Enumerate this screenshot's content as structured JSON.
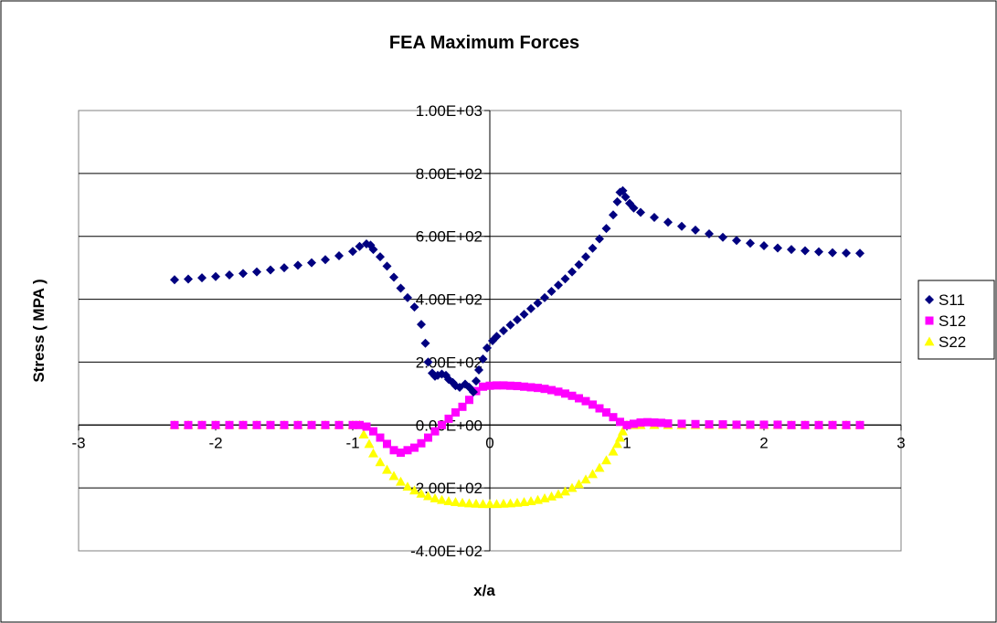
{
  "chart_data": {
    "type": "scatter",
    "title": "FEA Maximum Forces",
    "xlabel": "x/a",
    "ylabel": "Stress ( MPA )",
    "xlim": [
      -3,
      3
    ],
    "ylim": [
      -400,
      1000
    ],
    "x_ticks": [
      -3,
      -2,
      -1,
      0,
      1,
      2,
      3
    ],
    "x_tick_labels": [
      "-3",
      "-2",
      "-1",
      "0",
      "1",
      "2",
      "3"
    ],
    "y_ticks": [
      -400,
      -200,
      0,
      200,
      400,
      600,
      800,
      1000
    ],
    "y_tick_labels": [
      "-4.00E+02",
      "-2.00E+02",
      "0.00E+00",
      "2.00E+02",
      "4.00E+02",
      "6.00E+02",
      "8.00E+02",
      "1.00E+03"
    ],
    "grid": "horizontal",
    "legend_position": "right",
    "series": [
      {
        "name": "S11",
        "color": "#000080",
        "marker": "diamond",
        "points": [
          [
            -2.3,
            462
          ],
          [
            -2.2,
            464
          ],
          [
            -2.1,
            468
          ],
          [
            -2.0,
            472
          ],
          [
            -1.9,
            477
          ],
          [
            -1.8,
            482
          ],
          [
            -1.7,
            487
          ],
          [
            -1.6,
            493
          ],
          [
            -1.5,
            500
          ],
          [
            -1.4,
            508
          ],
          [
            -1.3,
            516
          ],
          [
            -1.2,
            526
          ],
          [
            -1.1,
            538
          ],
          [
            -1.0,
            552
          ],
          [
            -0.95,
            568
          ],
          [
            -0.9,
            576
          ],
          [
            -0.87,
            572
          ],
          [
            -0.85,
            558
          ],
          [
            -0.8,
            535
          ],
          [
            -0.75,
            505
          ],
          [
            -0.7,
            470
          ],
          [
            -0.65,
            435
          ],
          [
            -0.6,
            405
          ],
          [
            -0.55,
            375
          ],
          [
            -0.5,
            320
          ],
          [
            -0.47,
            260
          ],
          [
            -0.45,
            200
          ],
          [
            -0.42,
            165
          ],
          [
            -0.4,
            155
          ],
          [
            -0.38,
            158
          ],
          [
            -0.35,
            162
          ],
          [
            -0.32,
            158
          ],
          [
            -0.3,
            145
          ],
          [
            -0.27,
            135
          ],
          [
            -0.25,
            125
          ],
          [
            -0.22,
            120
          ],
          [
            -0.18,
            130
          ],
          [
            -0.15,
            120
          ],
          [
            -0.12,
            105
          ],
          [
            -0.1,
            140
          ],
          [
            -0.08,
            175
          ],
          [
            -0.05,
            210
          ],
          [
            -0.02,
            245
          ],
          [
            0.02,
            268
          ],
          [
            0.05,
            282
          ],
          [
            0.1,
            300
          ],
          [
            0.15,
            318
          ],
          [
            0.2,
            335
          ],
          [
            0.25,
            352
          ],
          [
            0.3,
            370
          ],
          [
            0.35,
            388
          ],
          [
            0.4,
            405
          ],
          [
            0.45,
            425
          ],
          [
            0.5,
            445
          ],
          [
            0.55,
            465
          ],
          [
            0.6,
            487
          ],
          [
            0.65,
            510
          ],
          [
            0.7,
            535
          ],
          [
            0.75,
            562
          ],
          [
            0.8,
            592
          ],
          [
            0.85,
            625
          ],
          [
            0.9,
            668
          ],
          [
            0.93,
            710
          ],
          [
            0.95,
            740
          ],
          [
            0.97,
            745
          ],
          [
            0.99,
            725
          ],
          [
            1.02,
            705
          ],
          [
            1.05,
            690
          ],
          [
            1.1,
            676
          ],
          [
            1.2,
            660
          ],
          [
            1.3,
            645
          ],
          [
            1.4,
            632
          ],
          [
            1.5,
            620
          ],
          [
            1.6,
            608
          ],
          [
            1.7,
            597
          ],
          [
            1.8,
            587
          ],
          [
            1.9,
            578
          ],
          [
            2.0,
            570
          ],
          [
            2.1,
            563
          ],
          [
            2.2,
            558
          ],
          [
            2.3,
            554
          ],
          [
            2.4,
            551
          ],
          [
            2.5,
            548
          ],
          [
            2.6,
            547
          ],
          [
            2.7,
            546
          ]
        ]
      },
      {
        "name": "S12",
        "color": "#FF00FF",
        "marker": "square",
        "points": [
          [
            -2.3,
            0
          ],
          [
            -2.2,
            0
          ],
          [
            -2.1,
            0
          ],
          [
            -2.0,
            0
          ],
          [
            -1.9,
            0
          ],
          [
            -1.8,
            0
          ],
          [
            -1.7,
            0
          ],
          [
            -1.6,
            0
          ],
          [
            -1.5,
            0
          ],
          [
            -1.4,
            0
          ],
          [
            -1.3,
            0
          ],
          [
            -1.2,
            0
          ],
          [
            -1.1,
            0
          ],
          [
            -1.0,
            0
          ],
          [
            -0.95,
            0
          ],
          [
            -0.9,
            -5
          ],
          [
            -0.85,
            -20
          ],
          [
            -0.8,
            -40
          ],
          [
            -0.75,
            -60
          ],
          [
            -0.7,
            -80
          ],
          [
            -0.65,
            -88
          ],
          [
            -0.6,
            -80
          ],
          [
            -0.55,
            -72
          ],
          [
            -0.5,
            -58
          ],
          [
            -0.45,
            -40
          ],
          [
            -0.4,
            -20
          ],
          [
            -0.35,
            0
          ],
          [
            -0.3,
            20
          ],
          [
            -0.25,
            40
          ],
          [
            -0.2,
            58
          ],
          [
            -0.15,
            80
          ],
          [
            -0.1,
            108
          ],
          [
            -0.05,
            122
          ],
          [
            0.0,
            125
          ],
          [
            0.05,
            126
          ],
          [
            0.1,
            126
          ],
          [
            0.15,
            125
          ],
          [
            0.2,
            124
          ],
          [
            0.25,
            122
          ],
          [
            0.3,
            120
          ],
          [
            0.35,
            118
          ],
          [
            0.4,
            115
          ],
          [
            0.45,
            111
          ],
          [
            0.5,
            106
          ],
          [
            0.55,
            100
          ],
          [
            0.6,
            93
          ],
          [
            0.65,
            85
          ],
          [
            0.7,
            76
          ],
          [
            0.75,
            65
          ],
          [
            0.8,
            53
          ],
          [
            0.85,
            40
          ],
          [
            0.9,
            25
          ],
          [
            0.95,
            10
          ],
          [
            1.0,
            0
          ],
          [
            1.05,
            4
          ],
          [
            1.1,
            8
          ],
          [
            1.15,
            9
          ],
          [
            1.2,
            8
          ],
          [
            1.25,
            7
          ],
          [
            1.3,
            5
          ],
          [
            1.4,
            4
          ],
          [
            1.5,
            3
          ],
          [
            1.6,
            2
          ],
          [
            1.7,
            2
          ],
          [
            1.8,
            1
          ],
          [
            1.9,
            1
          ],
          [
            2.0,
            1
          ],
          [
            2.1,
            1
          ],
          [
            2.2,
            0
          ],
          [
            2.3,
            0
          ],
          [
            2.4,
            0
          ],
          [
            2.5,
            0
          ],
          [
            2.6,
            0
          ],
          [
            2.7,
            0
          ]
        ]
      },
      {
        "name": "S22",
        "color": "#FFFF00",
        "marker": "triangle",
        "points": [
          [
            -2.3,
            0
          ],
          [
            -2.2,
            0
          ],
          [
            -2.1,
            0
          ],
          [
            -2.0,
            0
          ],
          [
            -1.9,
            0
          ],
          [
            -1.8,
            0
          ],
          [
            -1.7,
            0
          ],
          [
            -1.6,
            0
          ],
          [
            -1.5,
            0
          ],
          [
            -1.4,
            0
          ],
          [
            -1.3,
            0
          ],
          [
            -1.2,
            0
          ],
          [
            -1.1,
            0
          ],
          [
            -1.0,
            0
          ],
          [
            -0.95,
            0
          ],
          [
            -0.92,
            -30
          ],
          [
            -0.88,
            -60
          ],
          [
            -0.85,
            -90
          ],
          [
            -0.8,
            -118
          ],
          [
            -0.75,
            -142
          ],
          [
            -0.7,
            -162
          ],
          [
            -0.65,
            -180
          ],
          [
            -0.6,
            -196
          ],
          [
            -0.55,
            -208
          ],
          [
            -0.5,
            -218
          ],
          [
            -0.45,
            -226
          ],
          [
            -0.4,
            -233
          ],
          [
            -0.35,
            -238
          ],
          [
            -0.3,
            -242
          ],
          [
            -0.25,
            -245
          ],
          [
            -0.2,
            -247
          ],
          [
            -0.15,
            -249
          ],
          [
            -0.1,
            -250
          ],
          [
            -0.05,
            -251
          ],
          [
            0.0,
            -251
          ],
          [
            0.05,
            -251
          ],
          [
            0.1,
            -250
          ],
          [
            0.15,
            -249
          ],
          [
            0.2,
            -247
          ],
          [
            0.25,
            -245
          ],
          [
            0.3,
            -242
          ],
          [
            0.35,
            -238
          ],
          [
            0.4,
            -233
          ],
          [
            0.45,
            -227
          ],
          [
            0.5,
            -220
          ],
          [
            0.55,
            -211
          ],
          [
            0.6,
            -200
          ],
          [
            0.65,
            -188
          ],
          [
            0.7,
            -173
          ],
          [
            0.75,
            -156
          ],
          [
            0.8,
            -136
          ],
          [
            0.85,
            -112
          ],
          [
            0.9,
            -84
          ],
          [
            0.93,
            -60
          ],
          [
            0.95,
            -40
          ],
          [
            0.97,
            -20
          ],
          [
            1.0,
            0
          ],
          [
            1.05,
            0
          ],
          [
            1.1,
            0
          ],
          [
            1.2,
            0
          ],
          [
            1.3,
            0
          ],
          [
            1.4,
            0
          ],
          [
            1.5,
            0
          ],
          [
            1.6,
            0
          ],
          [
            1.7,
            0
          ],
          [
            1.8,
            0
          ],
          [
            1.9,
            0
          ],
          [
            2.0,
            0
          ],
          [
            2.1,
            0
          ],
          [
            2.2,
            0
          ],
          [
            2.3,
            0
          ],
          [
            2.4,
            0
          ],
          [
            2.5,
            0
          ],
          [
            2.6,
            0
          ],
          [
            2.7,
            0
          ]
        ]
      }
    ]
  }
}
